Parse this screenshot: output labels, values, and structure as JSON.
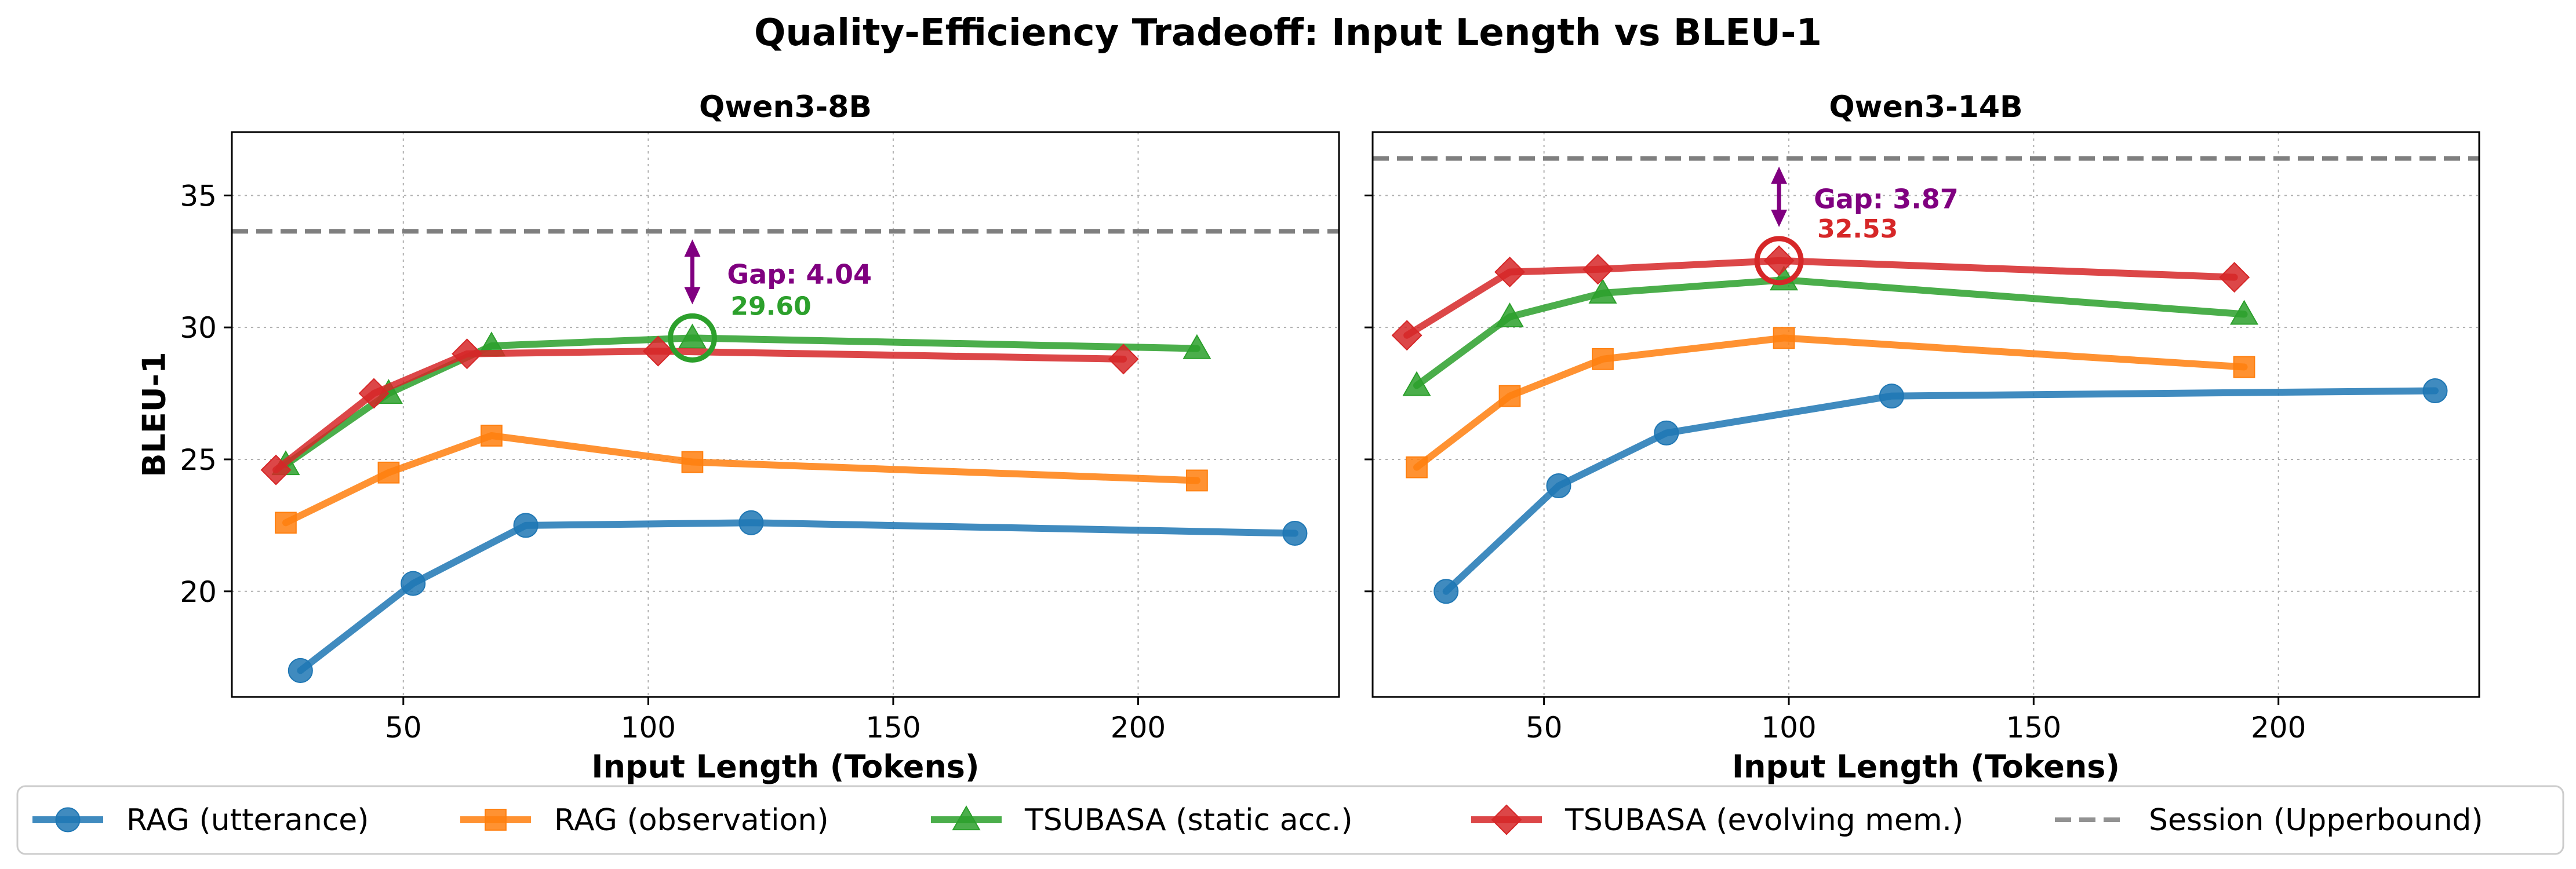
{
  "chart_data": {
    "suptitle": "Quality-Efficiency Tradeoff: Input Length vs BLEU-1",
    "legend": {
      "placement": "bottom-center",
      "entries": [
        {
          "label": "RAG (utterance)",
          "color": "#1f77b4",
          "marker": "circle",
          "style": "solid"
        },
        {
          "label": "RAG (observation)",
          "color": "#ff7f0e",
          "marker": "square",
          "style": "solid"
        },
        {
          "label": "TSUBASA (static acc.)",
          "color": "#2ca02c",
          "marker": "triangle",
          "style": "solid"
        },
        {
          "label": "TSUBASA (evolving mem.)",
          "color": "#d62728",
          "marker": "diamond",
          "style": "solid"
        },
        {
          "label": "Session (Upperbound)",
          "color": "#7f7f7f",
          "marker": "none",
          "style": "dashed"
        }
      ]
    },
    "panels": [
      {
        "type": "line",
        "title": "Qwen3-8B",
        "xlabel": "Input Length (Tokens)",
        "ylabel": "BLEU-1",
        "xlim": [
          15,
          241
        ],
        "ylim": [
          16.0,
          37.4
        ],
        "xticks": [
          50,
          100,
          150,
          200
        ],
        "yticks": [
          20,
          25,
          30,
          35
        ],
        "grid": true,
        "upperbound": 33.64,
        "series": [
          {
            "name": "RAG (utterance)",
            "x": [
              29,
              52,
              75,
              121,
              232
            ],
            "y": [
              17.0,
              20.3,
              22.5,
              22.6,
              22.2
            ]
          },
          {
            "name": "RAG (observation)",
            "x": [
              26,
              47,
              68,
              109,
              212
            ],
            "y": [
              22.6,
              24.5,
              25.9,
              24.9,
              24.2
            ]
          },
          {
            "name": "TSUBASA (static acc.)",
            "x": [
              26,
              47,
              68,
              109,
              212
            ],
            "y": [
              24.8,
              27.5,
              29.3,
              29.6,
              29.2
            ]
          },
          {
            "name": "TSUBASA (evolving mem.)",
            "x": [
              24,
              44,
              63,
              102,
              197
            ],
            "y": [
              24.6,
              27.5,
              29.0,
              29.1,
              28.8
            ]
          }
        ],
        "highlight": {
          "x": 109,
          "y": 29.6,
          "series": "TSUBASA (static acc.)",
          "value_label": "29.60",
          "gap_label": "Gap: 4.04"
        }
      },
      {
        "type": "line",
        "title": "Qwen3-14B",
        "xlabel": "Input Length (Tokens)",
        "ylabel": "",
        "xlim": [
          15,
          241
        ],
        "ylim": [
          16.0,
          37.4
        ],
        "xticks": [
          50,
          100,
          150,
          200
        ],
        "yticks": [
          20,
          25,
          30,
          35
        ],
        "grid": true,
        "upperbound": 36.4,
        "series": [
          {
            "name": "RAG (utterance)",
            "x": [
              30,
              53,
              75,
              121,
              232
            ],
            "y": [
              20.0,
              24.0,
              26.0,
              27.4,
              27.6
            ]
          },
          {
            "name": "RAG (observation)",
            "x": [
              24,
              43,
              62,
              99,
              193
            ],
            "y": [
              24.7,
              27.4,
              28.8,
              29.6,
              28.5
            ]
          },
          {
            "name": "TSUBASA (static acc.)",
            "x": [
              24,
              43,
              62,
              99,
              193
            ],
            "y": [
              27.8,
              30.4,
              31.3,
              31.8,
              30.5
            ]
          },
          {
            "name": "TSUBASA (evolving mem.)",
            "x": [
              22,
              43,
              61,
              98,
              191
            ],
            "y": [
              29.7,
              32.1,
              32.2,
              32.53,
              31.9
            ]
          }
        ],
        "highlight": {
          "x": 98,
          "y": 32.53,
          "series": "TSUBASA (evolving mem.)",
          "value_label": "32.53",
          "gap_label": "Gap: 3.87"
        }
      }
    ]
  }
}
